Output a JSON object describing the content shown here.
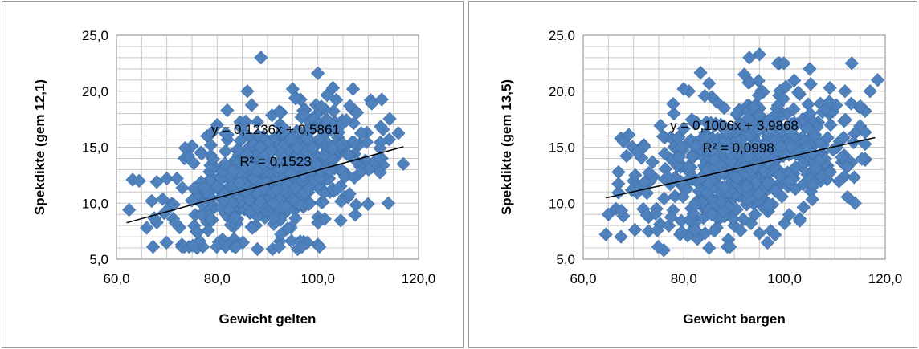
{
  "chart_data": [
    {
      "type": "scatter",
      "xlabel": "Gewicht gelten",
      "ylabel": "Spekdikte (gem 12,1)",
      "xlim": [
        60,
        120
      ],
      "ylim": [
        5,
        25
      ],
      "xticks": [
        "60,0",
        "80,0",
        "100,0",
        "120,0"
      ],
      "yticks": [
        "5,0",
        "10,0",
        "15,0",
        "20,0",
        "25,0"
      ],
      "grid": true,
      "marker_color": "#4f81bd",
      "trendline": {
        "type": "linear",
        "slope": 0.1236,
        "intercept": 0.5861,
        "x_range": [
          62,
          117
        ]
      },
      "annotations": [
        "y = 0,1236x + 0,5861",
        "R² = 0,1523"
      ],
      "x_mean": 92,
      "x_sd": 9.5,
      "y_sd": 2.5,
      "points": [
        [
          62.5,
          9.4
        ],
        [
          63.2,
          12.1
        ],
        [
          64.5,
          12.0
        ],
        [
          66.0,
          7.8
        ],
        [
          67.0,
          10.2
        ],
        [
          68.0,
          11.9
        ],
        [
          70.0,
          12.2
        ],
        [
          72.0,
          12.2
        ],
        [
          73.5,
          14.0
        ],
        [
          74.3,
          14.2
        ],
        [
          75.0,
          15.1
        ],
        [
          78.0,
          16.0
        ],
        [
          80.0,
          17.0
        ],
        [
          82.0,
          18.3
        ],
        [
          86.0,
          20.0
        ],
        [
          88.7,
          23.0
        ],
        [
          95.0,
          20.2
        ],
        [
          100.0,
          21.6
        ],
        [
          103.0,
          20.3
        ],
        [
          107.0,
          20.2
        ],
        [
          110.5,
          19.2
        ],
        [
          113.0,
          13.4
        ],
        [
          114.0,
          10.0
        ],
        [
          117.0,
          13.5
        ],
        [
          73.0,
          6.3
        ],
        [
          76.0,
          6.0
        ],
        [
          83.0,
          6.2
        ],
        [
          88.0,
          5.9
        ],
        [
          91.0,
          5.9
        ],
        [
          96.0,
          5.9
        ],
        [
          100.0,
          6.3
        ]
      ]
    },
    {
      "type": "scatter",
      "xlabel": "Gewicht bargen",
      "ylabel": "Spekdikte (gem 13,5)",
      "xlim": [
        60,
        120
      ],
      "ylim": [
        5,
        25
      ],
      "xticks": [
        "60,0",
        "80,0",
        "100,0",
        "120,0"
      ],
      "yticks": [
        "5,0",
        "10,0",
        "15,0",
        "20,0",
        "25,0"
      ],
      "grid": true,
      "marker_color": "#4f81bd",
      "trendline": {
        "type": "linear",
        "slope": 0.1006,
        "intercept": 3.9868,
        "x_range": [
          64.5,
          118
        ]
      },
      "annotations": [
        "y = 0,1006x + 3,9868",
        "R² = 0,0998"
      ],
      "x_mean": 93,
      "x_sd": 10,
      "y_sd": 2.8,
      "points": [
        [
          64.5,
          7.2
        ],
        [
          65.0,
          9.0
        ],
        [
          66.5,
          9.5
        ],
        [
          67.5,
          15.8
        ],
        [
          68.0,
          15.5
        ],
        [
          67.5,
          7.0
        ],
        [
          70.0,
          12.0
        ],
        [
          72.0,
          15.2
        ],
        [
          73.0,
          7.5
        ],
        [
          76.0,
          5.8
        ],
        [
          78.0,
          18.0
        ],
        [
          81.0,
          20.0
        ],
        [
          85.0,
          20.7
        ],
        [
          88.0,
          18.5
        ],
        [
          92.0,
          21.5
        ],
        [
          93.0,
          23.0
        ],
        [
          95.0,
          23.3
        ],
        [
          99.0,
          22.5
        ],
        [
          105.0,
          22.0
        ],
        [
          109.0,
          20.3
        ],
        [
          112.0,
          20.0
        ],
        [
          115.0,
          16.9
        ],
        [
          117.0,
          20.0
        ],
        [
          118.5,
          21.0
        ],
        [
          114.0,
          10.0
        ],
        [
          103.0,
          8.6
        ],
        [
          95.0,
          7.3
        ],
        [
          85.0,
          6.0
        ],
        [
          82.0,
          7.8
        ],
        [
          90.0,
          8.0
        ],
        [
          100.0,
          8.2
        ]
      ]
    }
  ]
}
